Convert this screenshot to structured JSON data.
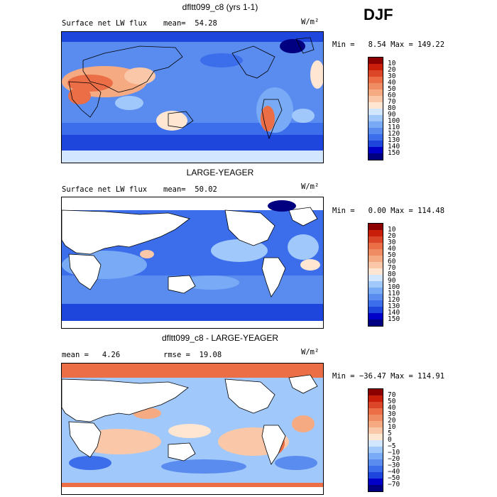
{
  "season": "DJF",
  "unit_label": "W/m²",
  "panels": [
    {
      "title": "dfltt099_c8 (yrs 1-1)",
      "left_label": "Surface net LW flux",
      "stat_label": "mean=  54.28",
      "minmax": "Min =   8.54 Max = 149.22",
      "kind": "abs",
      "colorbar": {
        "colors": [
          "#000080",
          "#0000c8",
          "#1e46dc",
          "#3c6eeb",
          "#5a8cf0",
          "#78aaf5",
          "#a0c8fa",
          "#d2e6ff",
          "#ffe6d2",
          "#fac8a8",
          "#f5aa82",
          "#f08c64",
          "#eb6e46",
          "#dc4628",
          "#c81e0a",
          "#8c0000"
        ],
        "labels": [
          "10",
          "20",
          "30",
          "40",
          "50",
          "60",
          "70",
          "80",
          "90",
          "100",
          "110",
          "120",
          "130",
          "140",
          "150"
        ]
      }
    },
    {
      "title": "LARGE-YEAGER",
      "left_label": "Surface net LW flux",
      "stat_label": "mean=  50.02",
      "minmax": "Min =   0.00 Max = 114.48",
      "kind": "obs",
      "colorbar": {
        "colors": [
          "#000080",
          "#0000c8",
          "#1e46dc",
          "#3c6eeb",
          "#5a8cf0",
          "#78aaf5",
          "#a0c8fa",
          "#d2e6ff",
          "#ffe6d2",
          "#fac8a8",
          "#f5aa82",
          "#f08c64",
          "#eb6e46",
          "#dc4628",
          "#c81e0a",
          "#8c0000"
        ],
        "labels": [
          "10",
          "20",
          "30",
          "40",
          "50",
          "60",
          "70",
          "80",
          "90",
          "100",
          "110",
          "120",
          "130",
          "140",
          "150"
        ]
      }
    },
    {
      "title": "dfltt099_c8 - LARGE-YEAGER",
      "left_label": "mean =   4.26",
      "stat_label": "rmse =  19.08",
      "minmax": "Min = −36.47 Max = 114.91",
      "kind": "diff",
      "colorbar": {
        "colors": [
          "#000080",
          "#0000c8",
          "#1e46dc",
          "#3c6eeb",
          "#5a8cf0",
          "#78aaf5",
          "#a0c8fa",
          "#d2e6ff",
          "#ffe6d2",
          "#fac8a8",
          "#f5aa82",
          "#f08c64",
          "#eb6e46",
          "#dc4628",
          "#c81e0a",
          "#8c0000"
        ],
        "labels": [
          "70",
          "50",
          "40",
          "30",
          "20",
          "10",
          "5",
          "0",
          "−5",
          "−10",
          "−20",
          "−30",
          "−40",
          "−50",
          "−70"
        ]
      }
    }
  ]
}
